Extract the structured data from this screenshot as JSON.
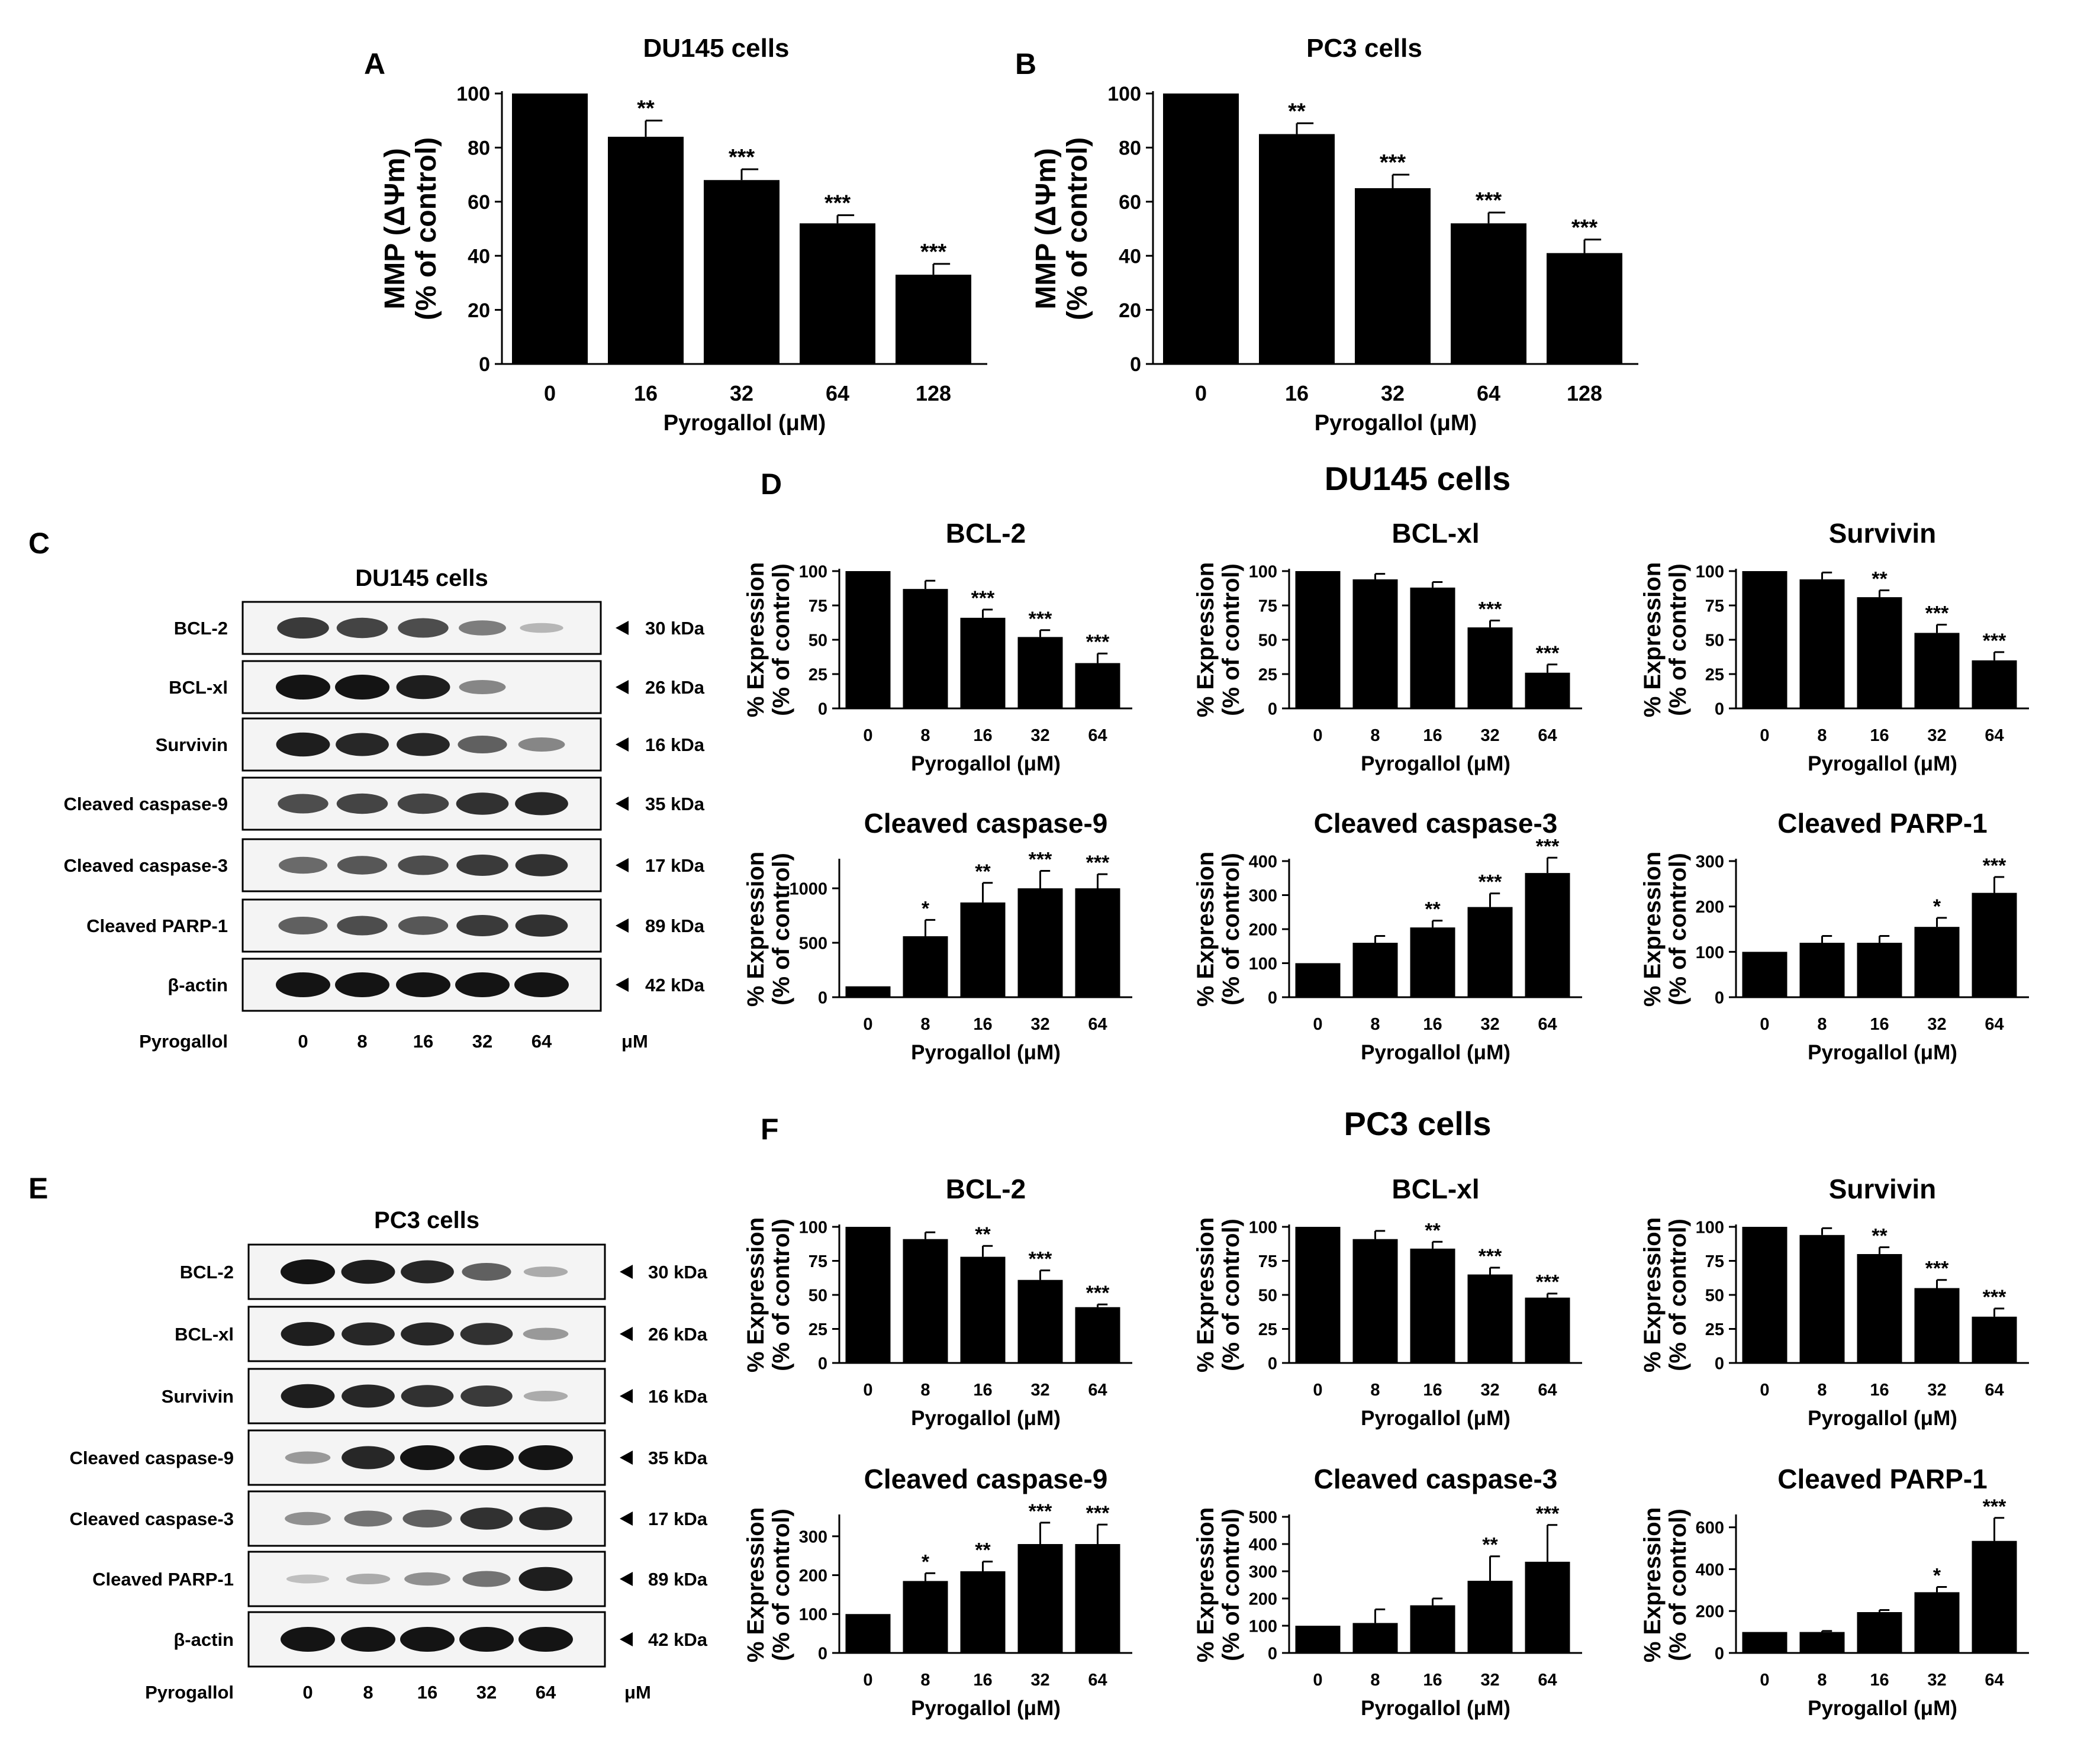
{
  "panel_letters": {
    "A": "A",
    "B": "B",
    "C": "C",
    "D": "D",
    "E": "E",
    "F": "F"
  },
  "section_titles": {
    "D": "DU145 cells",
    "F": "PC3 cells"
  },
  "colors": {
    "bar": "#000000",
    "axis": "#000000",
    "blot_bg": "#f4f4f4",
    "band": "#141414"
  },
  "chart_data": [
    {
      "id": "A",
      "type": "bar",
      "title": "DU145 cells",
      "ylabel_line1": "MMP (ΔΨm)",
      "ylabel_line2": "(% of control)",
      "xlabel": "Pyrogallol (μM)",
      "categories": [
        "0",
        "16",
        "32",
        "64",
        "128"
      ],
      "values": [
        100,
        84,
        68,
        52,
        33
      ],
      "errors": [
        0,
        6,
        4,
        3,
        4
      ],
      "significance": [
        "",
        "**",
        "***",
        "***",
        "***"
      ],
      "ylim": [
        0,
        100
      ],
      "yticks": [
        "0",
        "20",
        "40",
        "60",
        "80",
        "100"
      ],
      "ytick_values": [
        0,
        20,
        40,
        60,
        80,
        100
      ]
    },
    {
      "id": "B",
      "type": "bar",
      "title": "PC3 cells",
      "ylabel_line1": "MMP (ΔΨm)",
      "ylabel_line2": "(% of control)",
      "xlabel": "Pyrogallol (μM)",
      "categories": [
        "0",
        "16",
        "32",
        "64",
        "128"
      ],
      "values": [
        100,
        85,
        65,
        52,
        41
      ],
      "errors": [
        0,
        4,
        5,
        4,
        5
      ],
      "significance": [
        "",
        "**",
        "***",
        "***",
        "***"
      ],
      "ylim": [
        0,
        100
      ],
      "yticks": [
        "0",
        "20",
        "40",
        "60",
        "80",
        "100"
      ],
      "ytick_values": [
        0,
        20,
        40,
        60,
        80,
        100
      ]
    },
    {
      "id": "D1",
      "type": "bar",
      "title": "BCL-2",
      "ylabel_line1": "% Expression",
      "ylabel_line2": "(% of control)",
      "xlabel": "Pyrogallol (μM)",
      "categories": [
        "0",
        "8",
        "16",
        "32",
        "64"
      ],
      "values": [
        100,
        87,
        66,
        52,
        33
      ],
      "errors": [
        0,
        6,
        6,
        5,
        7
      ],
      "significance": [
        "",
        "",
        "***",
        "***",
        "***"
      ],
      "ylim": [
        0,
        100
      ],
      "yticks": [
        "0",
        "25",
        "50",
        "75",
        "100"
      ],
      "ytick_values": [
        0,
        25,
        50,
        75,
        100
      ]
    },
    {
      "id": "D2",
      "type": "bar",
      "title": "BCL-xl",
      "ylabel_line1": "% Expression",
      "ylabel_line2": "(% of control)",
      "xlabel": "Pyrogallol (μM)",
      "categories": [
        "0",
        "8",
        "16",
        "32",
        "64"
      ],
      "values": [
        100,
        94,
        88,
        59,
        26
      ],
      "errors": [
        0,
        4,
        4,
        5,
        6
      ],
      "significance": [
        "",
        "",
        "",
        "***",
        "***"
      ],
      "ylim": [
        0,
        100
      ],
      "yticks": [
        "0",
        "25",
        "50",
        "75",
        "100"
      ],
      "ytick_values": [
        0,
        25,
        50,
        75,
        100
      ]
    },
    {
      "id": "D3",
      "type": "bar",
      "title": "Survivin",
      "ylabel_line1": "% Expression",
      "ylabel_line2": "(% of control)",
      "xlabel": "Pyrogallol (μM)",
      "categories": [
        "0",
        "8",
        "16",
        "32",
        "64"
      ],
      "values": [
        100,
        94,
        81,
        55,
        35
      ],
      "errors": [
        0,
        5,
        5,
        6,
        6
      ],
      "significance": [
        "",
        "",
        "**",
        "***",
        "***"
      ],
      "ylim": [
        0,
        100
      ],
      "yticks": [
        "0",
        "25",
        "50",
        "75",
        "100"
      ],
      "ytick_values": [
        0,
        25,
        50,
        75,
        100
      ]
    },
    {
      "id": "D4",
      "type": "bar",
      "title": "Cleaved caspase-9",
      "ylabel_line1": "% Expression",
      "ylabel_line2": "(% of control)",
      "xlabel": "Pyrogallol (μM)",
      "categories": [
        "0",
        "8",
        "16",
        "32",
        "64"
      ],
      "values": [
        100,
        560,
        870,
        1000,
        1000
      ],
      "errors": [
        0,
        150,
        180,
        160,
        130
      ],
      "significance": [
        "",
        "*",
        "**",
        "***",
        "***"
      ],
      "ylim": [
        0,
        1250
      ],
      "yticks": [
        "0",
        "500",
        "1000"
      ],
      "ytick_values": [
        0,
        500,
        1000
      ]
    },
    {
      "id": "D5",
      "type": "bar",
      "title": "Cleaved caspase-3",
      "ylabel_line1": "% Expression",
      "ylabel_line2": "(% of control)",
      "xlabel": "Pyrogallol (μM)",
      "categories": [
        "0",
        "8",
        "16",
        "32",
        "64"
      ],
      "values": [
        100,
        160,
        205,
        265,
        365
      ],
      "errors": [
        0,
        20,
        20,
        40,
        45
      ],
      "significance": [
        "",
        "",
        "**",
        "***",
        "***"
      ],
      "ylim": [
        0,
        400
      ],
      "yticks": [
        "0",
        "100",
        "200",
        "300",
        "400"
      ],
      "ytick_values": [
        0,
        100,
        200,
        300,
        400
      ]
    },
    {
      "id": "D6",
      "type": "bar",
      "title": "Cleaved PARP-1",
      "ylabel_line1": "% Expression",
      "ylabel_line2": "(% of control)",
      "xlabel": "Pyrogallol (μM)",
      "categories": [
        "0",
        "8",
        "16",
        "32",
        "64"
      ],
      "values": [
        100,
        120,
        120,
        155,
        230
      ],
      "errors": [
        0,
        15,
        15,
        20,
        35
      ],
      "significance": [
        "",
        "",
        "",
        "*",
        "***"
      ],
      "ylim": [
        0,
        300
      ],
      "yticks": [
        "0",
        "100",
        "200",
        "300"
      ],
      "ytick_values": [
        0,
        100,
        200,
        300
      ]
    },
    {
      "id": "F1",
      "type": "bar",
      "title": "BCL-2",
      "ylabel_line1": "% Expression",
      "ylabel_line2": "(% of control)",
      "xlabel": "Pyrogallol (μM)",
      "categories": [
        "0",
        "8",
        "16",
        "32",
        "64"
      ],
      "values": [
        100,
        91,
        78,
        61,
        41
      ],
      "errors": [
        0,
        5,
        8,
        7,
        2
      ],
      "significance": [
        "",
        "",
        "**",
        "***",
        "***"
      ],
      "ylim": [
        0,
        100
      ],
      "yticks": [
        "0",
        "25",
        "50",
        "75",
        "100"
      ],
      "ytick_values": [
        0,
        25,
        50,
        75,
        100
      ]
    },
    {
      "id": "F2",
      "type": "bar",
      "title": "BCL-xl",
      "ylabel_line1": "% Expression",
      "ylabel_line2": "(% of control)",
      "xlabel": "Pyrogallol (μM)",
      "categories": [
        "0",
        "8",
        "16",
        "32",
        "64"
      ],
      "values": [
        100,
        91,
        84,
        65,
        48
      ],
      "errors": [
        0,
        6,
        5,
        5,
        3
      ],
      "significance": [
        "",
        "",
        "**",
        "***",
        "***"
      ],
      "ylim": [
        0,
        100
      ],
      "yticks": [
        "0",
        "25",
        "50",
        "75",
        "100"
      ],
      "ytick_values": [
        0,
        25,
        50,
        75,
        100
      ]
    },
    {
      "id": "F3",
      "type": "bar",
      "title": "Survivin",
      "ylabel_line1": "% Expression",
      "ylabel_line2": "(% of control)",
      "xlabel": "Pyrogallol (μM)",
      "categories": [
        "0",
        "8",
        "16",
        "32",
        "64"
      ],
      "values": [
        100,
        94,
        80,
        55,
        34
      ],
      "errors": [
        0,
        5,
        5,
        6,
        6
      ],
      "significance": [
        "",
        "",
        "**",
        "***",
        "***"
      ],
      "ylim": [
        0,
        100
      ],
      "yticks": [
        "0",
        "25",
        "50",
        "75",
        "100"
      ],
      "ytick_values": [
        0,
        25,
        50,
        75,
        100
      ]
    },
    {
      "id": "F4",
      "type": "bar",
      "title": "Cleaved caspase-9",
      "ylabel_line1": "% Expression",
      "ylabel_line2": "(% of control)",
      "xlabel": "Pyrogallol (μM)",
      "categories": [
        "0",
        "8",
        "16",
        "32",
        "64"
      ],
      "values": [
        100,
        185,
        210,
        280,
        280
      ],
      "errors": [
        0,
        20,
        25,
        55,
        50
      ],
      "significance": [
        "",
        "*",
        "**",
        "***",
        "***"
      ],
      "ylim": [
        0,
        350
      ],
      "yticks": [
        "0",
        "100",
        "200",
        "300"
      ],
      "ytick_values": [
        0,
        100,
        200,
        300
      ]
    },
    {
      "id": "F5",
      "type": "bar",
      "title": "Cleaved caspase-3",
      "ylabel_line1": "% Expression",
      "ylabel_line2": "(% of control)",
      "xlabel": "Pyrogallol (μM)",
      "categories": [
        "0",
        "8",
        "16",
        "32",
        "64"
      ],
      "values": [
        100,
        110,
        175,
        265,
        335
      ],
      "errors": [
        0,
        50,
        25,
        90,
        135
      ],
      "significance": [
        "",
        "",
        "",
        "**",
        "***"
      ],
      "ylim": [
        0,
        500
      ],
      "yticks": [
        "0",
        "100",
        "200",
        "300",
        "400",
        "500"
      ],
      "ytick_values": [
        0,
        100,
        200,
        300,
        400,
        500
      ]
    },
    {
      "id": "F6",
      "type": "bar",
      "title": "Cleaved PARP-1",
      "ylabel_line1": "% Expression",
      "ylabel_line2": "(% of control)",
      "xlabel": "Pyrogallol (μM)",
      "categories": [
        "0",
        "8",
        "16",
        "32",
        "64"
      ],
      "values": [
        100,
        100,
        195,
        290,
        535
      ],
      "errors": [
        0,
        5,
        10,
        25,
        110
      ],
      "significance": [
        "",
        "",
        "",
        "*",
        "***"
      ],
      "ylim": [
        0,
        650
      ],
      "yticks": [
        "0",
        "200",
        "400",
        "600"
      ],
      "ytick_values": [
        0,
        200,
        400,
        600
      ]
    }
  ],
  "blots": [
    {
      "id": "C",
      "title": "DU145 cells",
      "rows": [
        {
          "protein": "BCL-2",
          "kda": "30 kDa",
          "intensity": [
            0.8,
            0.75,
            0.7,
            0.45,
            0.15
          ]
        },
        {
          "protein": "BCL-xl",
          "kda": "26 kDa",
          "intensity": [
            1.0,
            1.0,
            0.95,
            0.4,
            0.0
          ]
        },
        {
          "protein": "Survivin",
          "kda": "16 kDa",
          "intensity": [
            0.95,
            0.9,
            0.9,
            0.6,
            0.4
          ]
        },
        {
          "protein": "Cleaved caspase-9",
          "kda": "35 kDa",
          "intensity": [
            0.7,
            0.75,
            0.75,
            0.85,
            0.9
          ]
        },
        {
          "protein": "Cleaved caspase-3",
          "kda": "17 kDa",
          "intensity": [
            0.55,
            0.65,
            0.7,
            0.8,
            0.85
          ]
        },
        {
          "protein": "Cleaved PARP-1",
          "kda": "89 kDa",
          "intensity": [
            0.6,
            0.7,
            0.65,
            0.8,
            0.85
          ]
        },
        {
          "protein": "β-actin",
          "kda": "42 kDa",
          "intensity": [
            1.0,
            1.0,
            1.0,
            1.0,
            1.0
          ]
        }
      ],
      "dose_label": "Pyrogallol",
      "doses": [
        "0",
        "8",
        "16",
        "32",
        "64"
      ],
      "unit": "μM"
    },
    {
      "id": "E",
      "title": "PC3 cells",
      "rows": [
        {
          "protein": "BCL-2",
          "kda": "30 kDa",
          "intensity": [
            1.0,
            0.95,
            0.9,
            0.6,
            0.2
          ]
        },
        {
          "protein": "BCL-xl",
          "kda": "26 kDa",
          "intensity": [
            0.95,
            0.9,
            0.9,
            0.85,
            0.3
          ]
        },
        {
          "protein": "Survivin",
          "kda": "16 kDa",
          "intensity": [
            0.95,
            0.9,
            0.85,
            0.8,
            0.2
          ]
        },
        {
          "protein": "Cleaved caspase-9",
          "kda": "35 kDa",
          "intensity": [
            0.3,
            0.9,
            1.0,
            1.0,
            1.0
          ]
        },
        {
          "protein": "Cleaved caspase-3",
          "kda": "17 kDa",
          "intensity": [
            0.35,
            0.5,
            0.6,
            0.85,
            0.9
          ]
        },
        {
          "protein": "Cleaved PARP-1",
          "kda": "89 kDa",
          "intensity": [
            0.1,
            0.2,
            0.35,
            0.5,
            0.95
          ]
        },
        {
          "protein": "β-actin",
          "kda": "42 kDa",
          "intensity": [
            1.0,
            1.0,
            1.0,
            1.0,
            1.0
          ]
        }
      ],
      "dose_label": "Pyrogallol",
      "doses": [
        "0",
        "8",
        "16",
        "32",
        "64"
      ],
      "unit": "μM"
    }
  ]
}
